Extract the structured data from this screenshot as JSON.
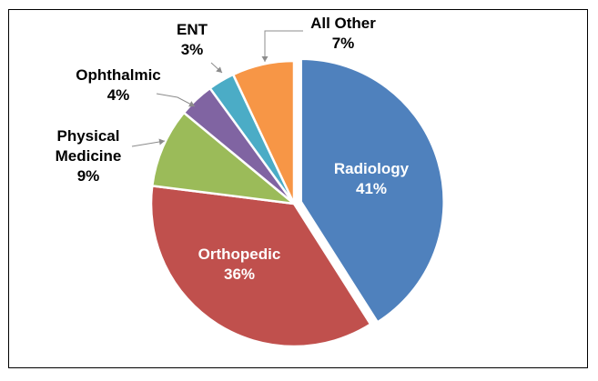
{
  "chart_data": {
    "type": "pie",
    "title": "",
    "legend": "none",
    "slices": [
      {
        "label": "Radiology",
        "pct_label": "41%",
        "value": 41,
        "color": "#4F81BD",
        "label_color": "#ffffff",
        "exploded": true
      },
      {
        "label": "Orthopedic",
        "pct_label": "36%",
        "value": 36,
        "color": "#C0504D",
        "label_color": "#ffffff",
        "exploded": false
      },
      {
        "label": "Physical Medicine",
        "label_lines": [
          "Physical",
          "Medicine"
        ],
        "pct_label": "9%",
        "value": 9,
        "color": "#9BBB59",
        "label_color": "#000000",
        "exploded": false
      },
      {
        "label": "Ophthalmic",
        "pct_label": "4%",
        "value": 4,
        "color": "#8064A2",
        "label_color": "#000000",
        "exploded": false
      },
      {
        "label": "ENT",
        "pct_label": "3%",
        "value": 3,
        "color": "#4BACC6",
        "label_color": "#000000",
        "exploded": false
      },
      {
        "label": "All Other",
        "pct_label": "7%",
        "value": 7,
        "color": "#F79646",
        "label_color": "#000000",
        "exploded": false
      }
    ]
  }
}
